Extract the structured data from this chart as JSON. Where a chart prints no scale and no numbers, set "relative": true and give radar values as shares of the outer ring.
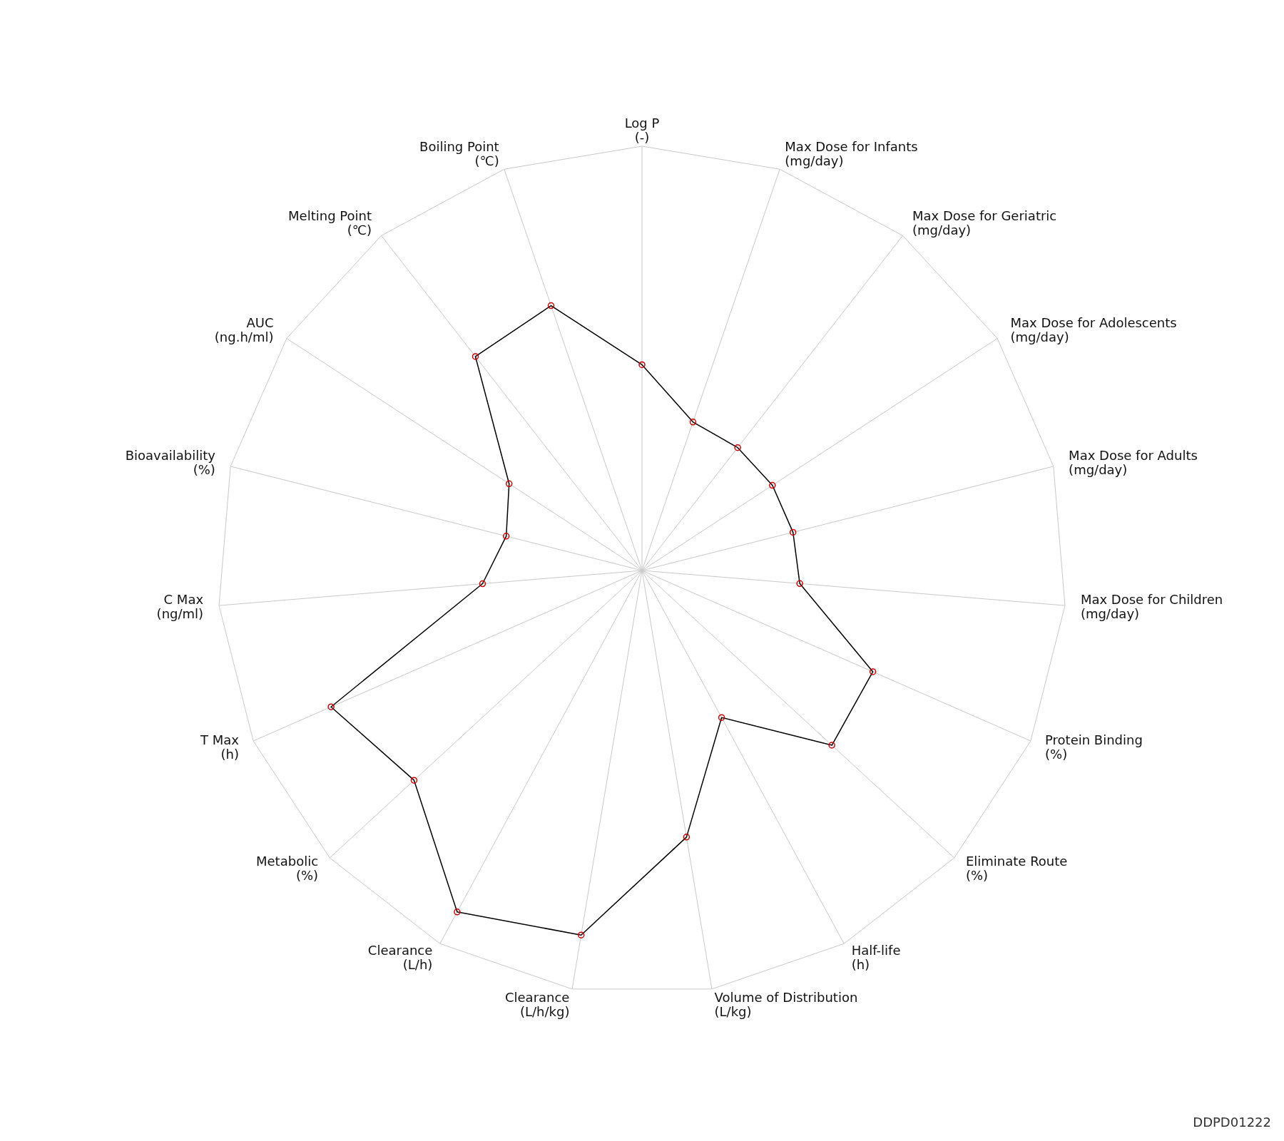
{
  "chart_data": {
    "type": "radar",
    "relative": true,
    "categories": [
      "Log P\n(-)",
      "Max Dose for Infants\n(mg/day)",
      "Max Dose for Geriatric\n(mg/day)",
      "Max Dose for Adolescents\n(mg/day)",
      "Max Dose for Adults\n(mg/day)",
      "Max Dose for Children\n(mg/day)",
      "Protein Binding\n(%)",
      "Eliminate Route\n(%)",
      "Half-life\n(h)",
      "Volume of Distribution\n(L/kg)",
      "Clearance\n(L/h/kg)",
      "Clearance\n(L/h)",
      "Metabolic\n(%)",
      "T Max\n(h)",
      "C Max\n(ng/ml)",
      "Bioavailability\n(%)",
      "AUC\n(ng.h/ml)",
      "Melting Point\n(℃)",
      "Boiling Point\n(℃)"
    ],
    "series": [
      {
        "color": "#000000",
        "values": [
          0.485,
          0.37,
          0.367,
          0.367,
          0.367,
          0.373,
          0.594,
          0.608,
          0.394,
          0.637,
          0.871,
          0.915,
          0.73,
          0.8,
          0.377,
          0.33,
          0.374,
          0.639,
          0.66
        ]
      }
    ],
    "marker": "circle",
    "grid": true,
    "annotations": [
      "DDPD01222"
    ]
  }
}
